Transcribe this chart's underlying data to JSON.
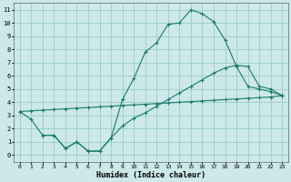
{
  "bg_color": "#cce8e8",
  "grid_color": "#99cccc",
  "line_color": "#1a7a6e",
  "xlabel": "Humidex (Indice chaleur)",
  "xlim": [
    -0.5,
    23.5
  ],
  "ylim": [
    -0.5,
    11.5
  ],
  "xticks": [
    0,
    1,
    2,
    3,
    4,
    5,
    6,
    7,
    8,
    9,
    10,
    11,
    12,
    13,
    14,
    15,
    16,
    17,
    18,
    19,
    20,
    21,
    22,
    23
  ],
  "yticks": [
    0,
    1,
    2,
    3,
    4,
    5,
    6,
    7,
    8,
    9,
    10,
    11
  ],
  "curve_wavy_x": [
    0,
    1,
    2,
    3,
    4,
    5,
    6,
    7,
    8,
    9,
    10,
    11,
    12,
    13,
    14,
    15,
    16,
    17,
    18,
    19,
    20,
    21,
    22,
    23
  ],
  "curve_wavy_y": [
    3.3,
    2.7,
    1.5,
    1.5,
    0.5,
    1.0,
    0.3,
    0.3,
    1.3,
    4.2,
    5.8,
    7.8,
    8.5,
    9.9,
    10.0,
    11.0,
    10.7,
    10.1,
    8.7,
    6.7,
    5.2,
    5.0,
    4.8,
    4.5
  ],
  "curve_linear_x": [
    0,
    1,
    2,
    3,
    4,
    5,
    6,
    7,
    8,
    9,
    10,
    11,
    12,
    13,
    14,
    15,
    16,
    17,
    18,
    19,
    20,
    21,
    22,
    23
  ],
  "curve_linear_y": [
    3.3,
    3.35,
    3.4,
    3.45,
    3.5,
    3.55,
    3.6,
    3.65,
    3.7,
    3.75,
    3.8,
    3.85,
    3.9,
    3.95,
    4.0,
    4.05,
    4.1,
    4.15,
    4.2,
    4.25,
    4.3,
    4.35,
    4.4,
    4.5
  ],
  "curve_mid_x": [
    2,
    3,
    4,
    5,
    6,
    7,
    8,
    9,
    10,
    11,
    12,
    13,
    14,
    15,
    16,
    17,
    18,
    19,
    20,
    21,
    22,
    23
  ],
  "curve_mid_y": [
    1.5,
    1.5,
    0.5,
    1.0,
    0.3,
    0.3,
    1.3,
    2.2,
    2.8,
    3.2,
    3.7,
    4.2,
    4.7,
    5.2,
    5.7,
    6.2,
    6.6,
    6.8,
    6.7,
    5.2,
    5.0,
    4.5
  ]
}
